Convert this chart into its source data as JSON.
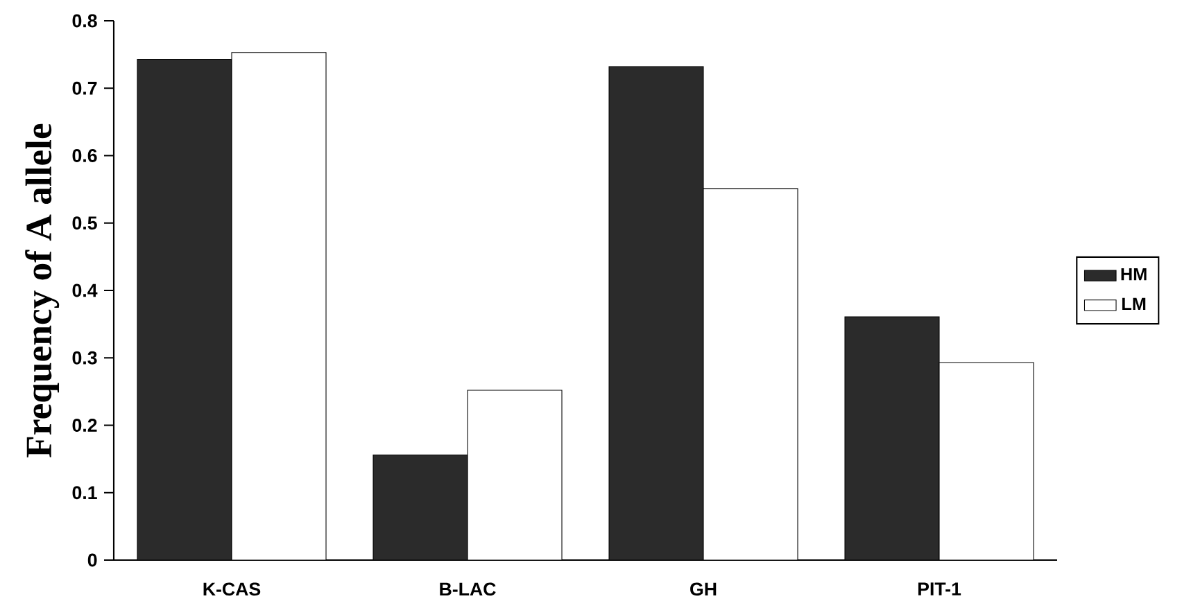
{
  "chart_data": {
    "type": "bar",
    "ylabel": "Frequency of A allele",
    "categories": [
      "K-CAS",
      "B-LAC",
      "GH",
      "PIT-1"
    ],
    "series": [
      {
        "name": "HM",
        "color": "#2b2b2b",
        "values": [
          0.743,
          0.156,
          0.732,
          0.361
        ]
      },
      {
        "name": "LM",
        "color": "#ffffff",
        "values": [
          0.753,
          0.252,
          0.551,
          0.293
        ]
      }
    ],
    "ylim": [
      0,
      0.8
    ],
    "yticks": [
      0,
      0.1,
      0.2,
      0.3,
      0.4,
      0.5,
      0.6,
      0.7,
      0.8
    ],
    "legend": "right"
  }
}
